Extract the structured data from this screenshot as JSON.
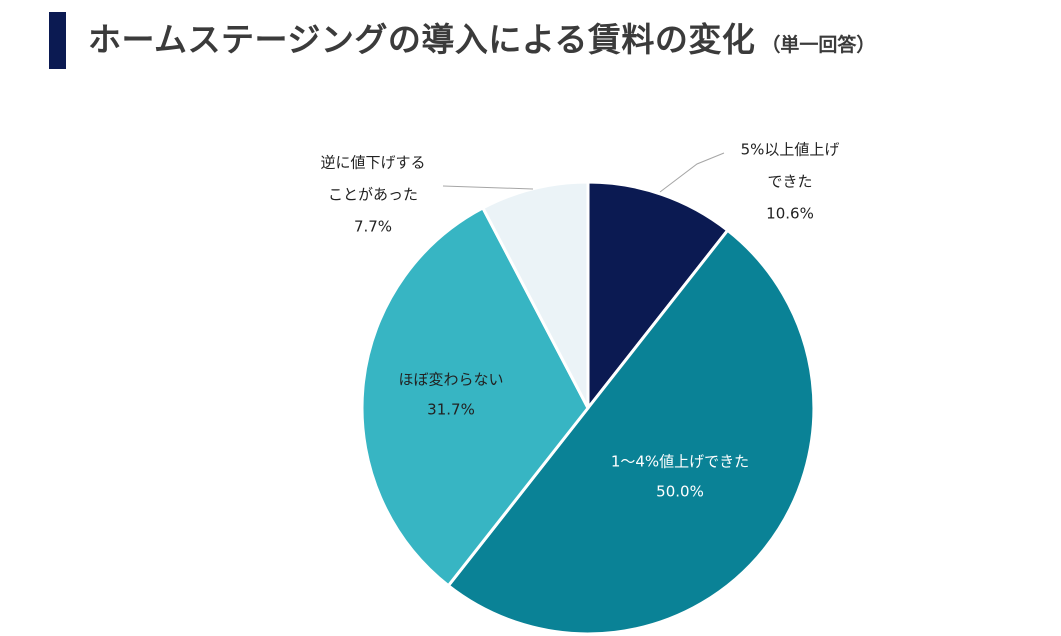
{
  "header": {
    "title": "ホームステージングの導入による賃料の変化",
    "subtitle": "（単一回答）"
  },
  "colors": {
    "title_bar": "#0b1a52",
    "title_text": "#3b3b3b",
    "label_dark": "#222222",
    "label_light": "#ffffff",
    "leader_line": "#a6a6a6"
  },
  "chart_data": {
    "type": "pie",
    "start": "12 o'clock",
    "direction": "clockwise",
    "slices": [
      {
        "label_lines": [
          "5%以上値上げ",
          "できた"
        ],
        "value": 10.6,
        "value_label": "10.6%",
        "color": "#0b1a52"
      },
      {
        "label_lines": [
          "1〜4%値上げできた"
        ],
        "value": 50.0,
        "value_label": "50.0%",
        "color": "#0a8296"
      },
      {
        "label_lines": [
          "ほぼ変わらない"
        ],
        "value": 31.7,
        "value_label": "31.7%",
        "color": "#37b5c3"
      },
      {
        "label_lines": [
          "逆に値下げする",
          "ことがあった"
        ],
        "value": 7.7,
        "value_label": "7.7%",
        "color": "#ebf3f7"
      }
    ]
  }
}
